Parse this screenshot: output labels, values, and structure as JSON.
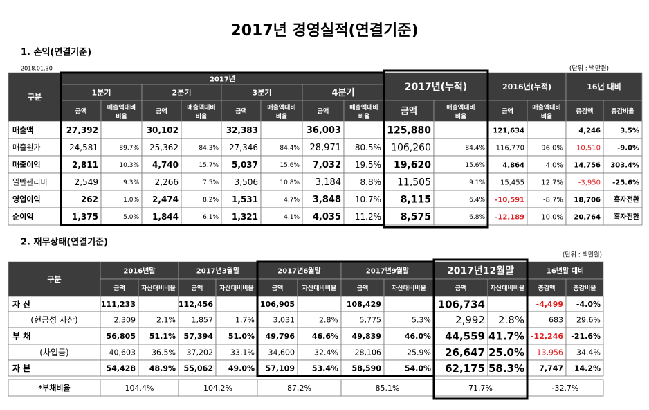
{
  "title": "2017년 경영실적(연결기준)",
  "income": {
    "heading": "1. 손익(연결기준)",
    "date": "2018.01.30",
    "unit": "(단위 : 백만원)",
    "header": {
      "label": "구분",
      "group": "2017년",
      "periods": [
        "1분기",
        "2분기",
        "3분기",
        "4분기"
      ],
      "cumulative": "2017년(누적)",
      "previous": "2016년(누적)",
      "diff": "16년 대비",
      "subs": [
        "금액",
        "매출액대비 비율",
        "금액",
        "매출액대비 비율",
        "금액",
        "매출액대비 비율",
        "금액",
        "매출액대비 비율",
        "금액",
        "매출액대비 비율",
        "금액",
        "매출액대비 비율",
        "증감액",
        "증감비율"
      ]
    },
    "rows": [
      {
        "label": "매출액",
        "bold": true,
        "cells": [
          "27,392",
          null,
          "30,102",
          null,
          "32,383",
          null,
          "36,003",
          null,
          "125,880",
          null,
          "121,634",
          null,
          "4,246",
          "3.5%"
        ]
      },
      {
        "label": "매출원가",
        "bold": false,
        "cells": [
          "24,581",
          "89.7%",
          "25,362",
          "84.3%",
          "27,346",
          "84.4%",
          "28,971",
          "80.5%",
          "106,260",
          "84.4%",
          "116,770",
          "96.0%",
          "-10,510",
          "-9.0%"
        ]
      },
      {
        "label": "매출이익",
        "bold": true,
        "cells": [
          "2,811",
          "10.3%",
          "4,740",
          "15.7%",
          "5,037",
          "15.6%",
          "7,032",
          "19.5%",
          "19,620",
          "15.6%",
          "4,864",
          "4.0%",
          "14,756",
          "303.4%"
        ]
      },
      {
        "label": "일반관리비",
        "bold": false,
        "cells": [
          "2,549",
          "9.3%",
          "2,266",
          "7.5%",
          "3,506",
          "10.8%",
          "3,184",
          "8.8%",
          "11,505",
          "9.1%",
          "15,455",
          "12.7%",
          "-3,950",
          "-25.6%"
        ]
      },
      {
        "label": "영업이익",
        "bold": true,
        "cells": [
          "262",
          "1.0%",
          "2,474",
          "8.2%",
          "1,531",
          "4.7%",
          "3,848",
          "10.7%",
          "8,115",
          "6.4%",
          "-10,591",
          "-8.7%",
          "18,706",
          "흑자전환"
        ]
      },
      {
        "label": "순이익",
        "bold": true,
        "cells": [
          "1,375",
          "5.0%",
          "1,844",
          "6.1%",
          "1,321",
          "4.1%",
          "4,035",
          "11.2%",
          "8,575",
          "6.8%",
          "-12,189",
          "-10.0%",
          "20,764",
          "흑자전환"
        ]
      }
    ]
  },
  "balance": {
    "heading": "2. 재무상태(연결기준)",
    "unit": "(단위 : 백만원)",
    "header": {
      "label": "구분",
      "periods": [
        "2016년말",
        "2017년3월말",
        "2017년6월말",
        "2017년9월말",
        "2017년12월말",
        "16년말 대비"
      ],
      "subs": [
        "금액",
        "자산대비비율",
        "금액",
        "자산대비비율",
        "금액",
        "자산대비비율",
        "금액",
        "자산대비비율",
        "금액",
        "자산대비비율",
        "증감액",
        "증감비율"
      ]
    },
    "rows": [
      {
        "label": "자 산",
        "bold": true,
        "cells": [
          "111,233",
          null,
          "112,456",
          null,
          "106,905",
          null,
          "108,429",
          null,
          "106,734",
          null,
          "-4,499",
          "-4.0%"
        ]
      },
      {
        "label": "(현금성 자산)",
        "bold": false,
        "cells": [
          "2,309",
          "2.1%",
          "1,857",
          "1.7%",
          "3,031",
          "2.8%",
          "5,775",
          "5.3%",
          "2,992",
          "2.8%",
          "683",
          "29.6%"
        ]
      },
      {
        "label": "부 채",
        "bold": true,
        "cells": [
          "56,805",
          "51.1%",
          "57,394",
          "51.0%",
          "49,796",
          "46.6%",
          "49,839",
          "46.0%",
          "44,559",
          "41.7%",
          "-12,246",
          "-21.6%"
        ]
      },
      {
        "label": "(차입금)",
        "bold": false,
        "cells": [
          "40,603",
          "36.5%",
          "37,202",
          "33.1%",
          "34,600",
          "32.4%",
          "28,106",
          "25.9%",
          "26,647",
          "25.0%",
          "-13,956",
          "-34.4%"
        ]
      },
      {
        "label": "자 본",
        "bold": true,
        "cells": [
          "54,428",
          "48.9%",
          "55,062",
          "49.0%",
          "57,109",
          "53.4%",
          "58,590",
          "54.0%",
          "62,175",
          "58.3%",
          "7,747",
          "14.2%"
        ]
      }
    ],
    "ratio": {
      "label": "*부채비율",
      "cells": [
        "104.4%",
        "104.2%",
        "87.2%",
        "85.1%",
        "71.7%",
        "-32.7%"
      ]
    }
  }
}
